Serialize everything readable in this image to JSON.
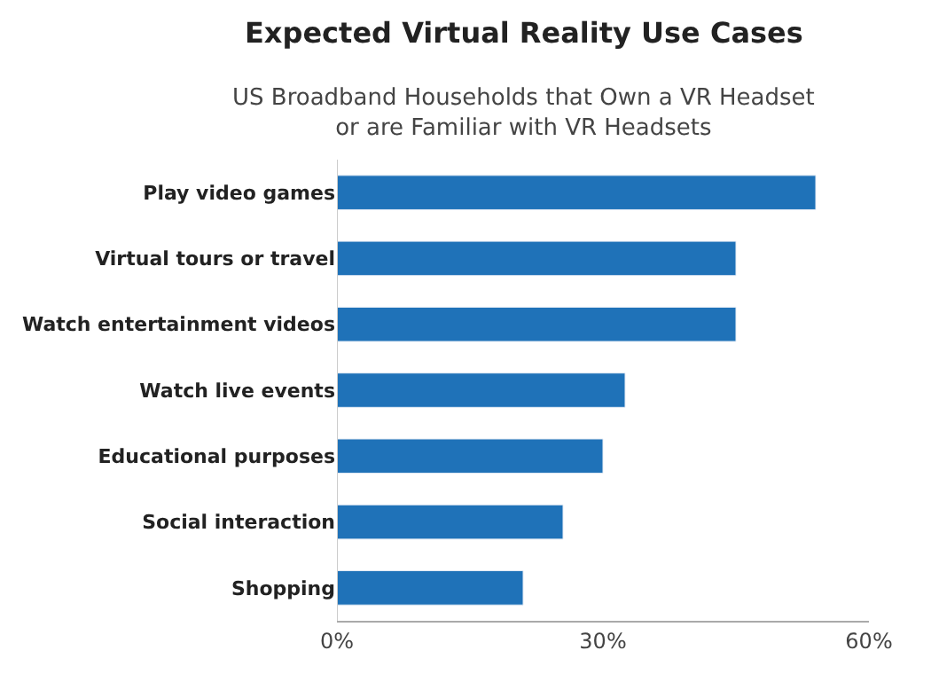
{
  "chart_data": {
    "type": "bar",
    "orientation": "horizontal",
    "title": "Expected Virtual Reality Use Cases",
    "subtitle": "US Broadband Households that Own a VR Headset\nor are Familiar with VR Headsets",
    "categories": [
      "Play video games",
      "Virtual tours or travel",
      "Watch entertainment videos",
      "Watch live events",
      "Educational purposes",
      "Social interaction",
      "Shopping"
    ],
    "values": [
      54,
      45,
      45,
      32.5,
      30,
      25.5,
      21
    ],
    "color": "#1f72b8",
    "xlim": [
      0,
      60
    ],
    "xticks": [
      {
        "value": 0,
        "label": "0%"
      },
      {
        "value": 30,
        "label": "30%"
      },
      {
        "value": 60,
        "label": "60%"
      }
    ]
  }
}
